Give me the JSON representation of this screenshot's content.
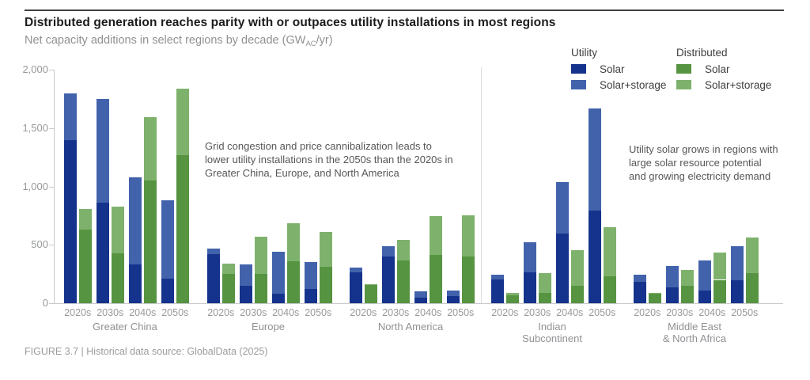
{
  "header": {
    "title": "Distributed generation reaches parity with or outpaces utility installations in most regions",
    "subtitle_prefix": "Net capacity additions in select regions by decade (GW",
    "subtitle_subscript": "AC",
    "subtitle_suffix": "/yr)"
  },
  "caption": "FIGURE 3.7 | Historical data source: GlobalData (2025)",
  "annotations": {
    "left_panel": "Grid congestion and price cannibalization leads to lower utility installations in the 2050s than the 2020s in Greater China, Europe, and North America",
    "right_panel": "Utility solar grows in regions with large solar resource potential and growing electricity demand"
  },
  "legend": {
    "groups": [
      {
        "title": "Utility",
        "items": [
          {
            "label": "Solar",
            "color": "#15338c"
          },
          {
            "label": "Solar+storage",
            "color": "#4263ac"
          }
        ]
      },
      {
        "title": "Distributed",
        "items": [
          {
            "label": "Solar",
            "color": "#569441"
          },
          {
            "label": "Solar+storage",
            "color": "#7eb26c"
          }
        ]
      }
    ]
  },
  "chart_data": {
    "type": "bar",
    "stacked": true,
    "unit": "GW AC/yr",
    "ylim": [
      0,
      2000
    ],
    "grid": false,
    "yticks": [
      {
        "value": 0,
        "label": "0"
      },
      {
        "value": 500,
        "label": "500"
      },
      {
        "value": 1000,
        "label": "1,000"
      },
      {
        "value": 1500,
        "label": "1,500"
      },
      {
        "value": 2000,
        "label": "2,000"
      }
    ],
    "colors": {
      "utility_solar": "#15338c",
      "utility_solar_storage": "#4263ac",
      "distributed_solar": "#569441",
      "distributed_solar_storage": "#7eb26c"
    },
    "series_legend": [
      "Utility Solar",
      "Utility Solar+storage",
      "Distributed Solar",
      "Distributed Solar+storage"
    ],
    "regions": [
      {
        "name": "Greater China",
        "decades": [
          {
            "label": "2020s",
            "utility": {
              "solar": 1400,
              "solar_storage": 400
            },
            "distributed": {
              "solar": 630,
              "solar_storage": 175
            }
          },
          {
            "label": "2030s",
            "utility": {
              "solar": 860,
              "solar_storage": 890
            },
            "distributed": {
              "solar": 430,
              "solar_storage": 400
            }
          },
          {
            "label": "2040s",
            "utility": {
              "solar": 330,
              "solar_storage": 745
            },
            "distributed": {
              "solar": 1050,
              "solar_storage": 545
            }
          },
          {
            "label": "2050s",
            "utility": {
              "solar": 210,
              "solar_storage": 670
            },
            "distributed": {
              "solar": 1270,
              "solar_storage": 570
            }
          }
        ]
      },
      {
        "name": "Europe",
        "decades": [
          {
            "label": "2020s",
            "utility": {
              "solar": 420,
              "solar_storage": 50
            },
            "distributed": {
              "solar": 250,
              "solar_storage": 90
            }
          },
          {
            "label": "2030s",
            "utility": {
              "solar": 150,
              "solar_storage": 180
            },
            "distributed": {
              "solar": 250,
              "solar_storage": 320
            }
          },
          {
            "label": "2040s",
            "utility": {
              "solar": 80,
              "solar_storage": 360
            },
            "distributed": {
              "solar": 360,
              "solar_storage": 325
            }
          },
          {
            "label": "2050s",
            "utility": {
              "solar": 120,
              "solar_storage": 230
            },
            "distributed": {
              "solar": 310,
              "solar_storage": 300
            }
          }
        ]
      },
      {
        "name": "North America",
        "decades": [
          {
            "label": "2020s",
            "utility": {
              "solar": 265,
              "solar_storage": 40
            },
            "distributed": {
              "solar": 155,
              "solar_storage": 10
            }
          },
          {
            "label": "2030s",
            "utility": {
              "solar": 400,
              "solar_storage": 90
            },
            "distributed": {
              "solar": 365,
              "solar_storage": 175
            }
          },
          {
            "label": "2040s",
            "utility": {
              "solar": 45,
              "solar_storage": 55
            },
            "distributed": {
              "solar": 415,
              "solar_storage": 330
            }
          },
          {
            "label": "2050s",
            "utility": {
              "solar": 60,
              "solar_storage": 50
            },
            "distributed": {
              "solar": 400,
              "solar_storage": 355
            }
          }
        ]
      },
      {
        "name": "Indian\nSubcontinent",
        "decades": [
          {
            "label": "2020s",
            "utility": {
              "solar": 205,
              "solar_storage": 40
            },
            "distributed": {
              "solar": 70,
              "solar_storage": 15
            }
          },
          {
            "label": "2030s",
            "utility": {
              "solar": 265,
              "solar_storage": 255
            },
            "distributed": {
              "solar": 90,
              "solar_storage": 165
            }
          },
          {
            "label": "2040s",
            "utility": {
              "solar": 595,
              "solar_storage": 440
            },
            "distributed": {
              "solar": 150,
              "solar_storage": 305
            }
          },
          {
            "label": "2050s",
            "utility": {
              "solar": 795,
              "solar_storage": 875
            },
            "distributed": {
              "solar": 230,
              "solar_storage": 420
            }
          }
        ]
      },
      {
        "name": "Middle East\n& North Africa",
        "decades": [
          {
            "label": "2020s",
            "utility": {
              "solar": 180,
              "solar_storage": 65
            },
            "distributed": {
              "solar": 80,
              "solar_storage": 10
            }
          },
          {
            "label": "2030s",
            "utility": {
              "solar": 135,
              "solar_storage": 185
            },
            "distributed": {
              "solar": 150,
              "solar_storage": 135
            }
          },
          {
            "label": "2040s",
            "utility": {
              "solar": 110,
              "solar_storage": 255
            },
            "distributed": {
              "solar": 200,
              "solar_storage": 235
            }
          },
          {
            "label": "2050s",
            "utility": {
              "solar": 195,
              "solar_storage": 295
            },
            "distributed": {
              "solar": 260,
              "solar_storage": 300
            }
          }
        ]
      }
    ]
  }
}
